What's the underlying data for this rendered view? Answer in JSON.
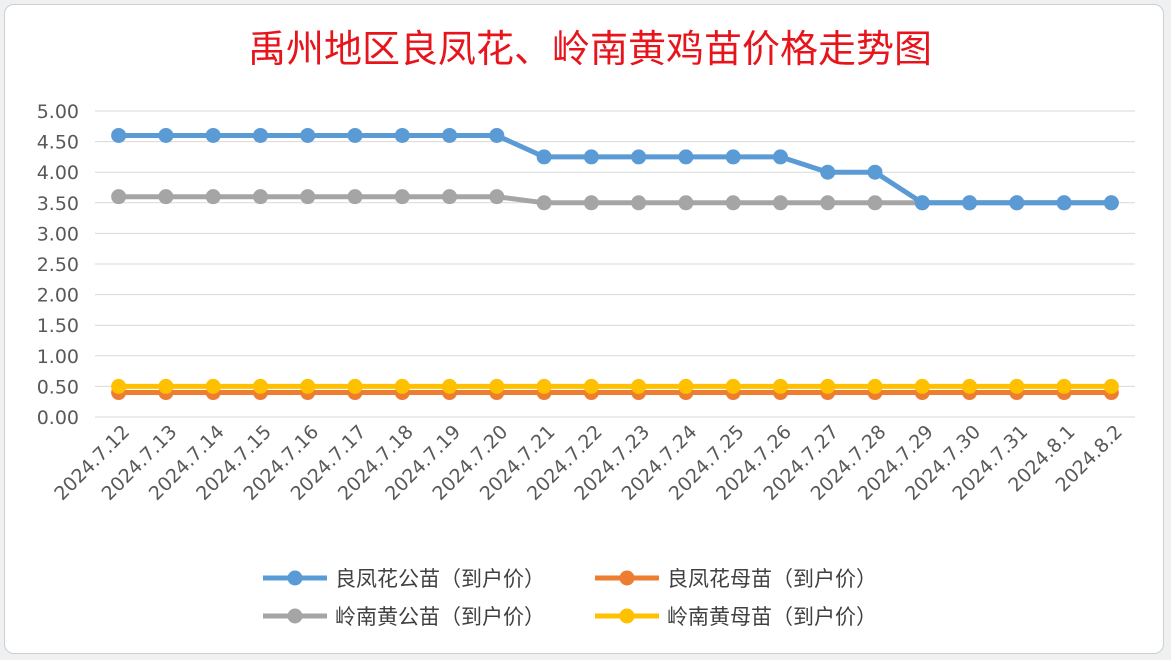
{
  "chart_data": {
    "type": "line",
    "title": "禹州地区良凤花、岭南黄鸡苗价格走势图",
    "title_color": "#e8141c",
    "categories": [
      "2024.7.12",
      "2024.7.13",
      "2024.7.14",
      "2024.7.15",
      "2024.7.16",
      "2024.7.17",
      "2024.7.18",
      "2024.7.19",
      "2024.7.20",
      "2024.7.21",
      "2024.7.22",
      "2024.7.23",
      "2024.7.24",
      "2024.7.25",
      "2024.7.26",
      "2024.7.27",
      "2024.7.28",
      "2024.7.29",
      "2024.7.30",
      "2024.7.31",
      "2024.8.1",
      "2024.8.2"
    ],
    "y_ticks": [
      "0.00",
      "0.50",
      "1.00",
      "1.50",
      "2.00",
      "2.50",
      "3.00",
      "3.50",
      "4.00",
      "4.50",
      "5.00"
    ],
    "ylim": [
      0,
      5
    ],
    "grid": true,
    "legend_position": "bottom",
    "series": [
      {
        "name": "良凤花公苗（到户价）",
        "color": "#5b9bd5",
        "values": [
          4.6,
          4.6,
          4.6,
          4.6,
          4.6,
          4.6,
          4.6,
          4.6,
          4.6,
          4.25,
          4.25,
          4.25,
          4.25,
          4.25,
          4.25,
          4.0,
          4.0,
          3.5,
          3.5,
          3.5,
          3.5,
          3.5
        ]
      },
      {
        "name": "良凤花母苗（到户价）",
        "color": "#ed7d31",
        "values": [
          0.4,
          0.4,
          0.4,
          0.4,
          0.4,
          0.4,
          0.4,
          0.4,
          0.4,
          0.4,
          0.4,
          0.4,
          0.4,
          0.4,
          0.4,
          0.4,
          0.4,
          0.4,
          0.4,
          0.4,
          0.4,
          0.4
        ]
      },
      {
        "name": "岭南黄公苗（到户价）",
        "color": "#a5a5a5",
        "values": [
          3.6,
          3.6,
          3.6,
          3.6,
          3.6,
          3.6,
          3.6,
          3.6,
          3.6,
          3.5,
          3.5,
          3.5,
          3.5,
          3.5,
          3.5,
          3.5,
          3.5,
          3.5,
          3.5,
          3.5,
          3.5,
          3.5
        ]
      },
      {
        "name": "岭南黄母苗（到户价）",
        "color": "#ffc000",
        "values": [
          0.5,
          0.5,
          0.5,
          0.5,
          0.5,
          0.5,
          0.5,
          0.5,
          0.5,
          0.5,
          0.5,
          0.5,
          0.5,
          0.5,
          0.5,
          0.5,
          0.5,
          0.5,
          0.5,
          0.5,
          0.5,
          0.5
        ]
      }
    ]
  }
}
